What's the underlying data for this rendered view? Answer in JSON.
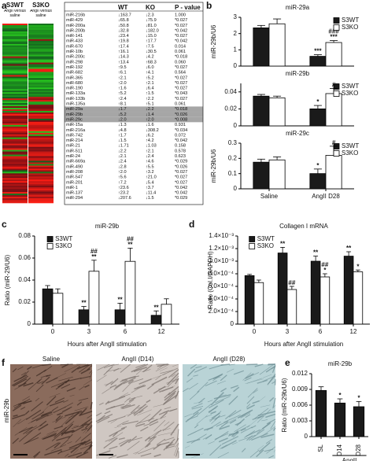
{
  "panel_labels": [
    "a",
    "b",
    "c",
    "d",
    "e",
    "f"
  ],
  "heatmap": {
    "columns": [
      "S3WT",
      "S3KO"
    ],
    "column_notes": [
      "AngII versus saline",
      "AngII versus saline"
    ]
  },
  "table": {
    "header": [
      "WT",
      "KO",
      "P - value"
    ],
    "highlighted_rows": [
      18,
      19,
      20
    ],
    "rows": [
      [
        "miR-216b",
        "↓163.7",
        "↓2.3",
        "1.000"
      ],
      [
        "miR-429",
        "↓65.8",
        "↓75.9",
        "*0.027"
      ],
      [
        "miR-200a",
        "↓50.8",
        "↓81.0",
        "*0.027"
      ],
      [
        "miR-200b",
        "↓32.8",
        "↓182.0",
        "*0.042"
      ],
      [
        "miR-141",
        "↓23.4",
        "↓15.0",
        "*0.027"
      ],
      [
        "miR-433",
        "↑19.8",
        "↑17.7",
        "*0.042"
      ],
      [
        "miR-670",
        "↑17.4",
        "↑7.5",
        "0.014"
      ],
      [
        "miR-10b",
        "↑16.1",
        "↓30.5",
        "0.061"
      ],
      [
        "miR-200c",
        "↓14.3",
        "↓4.2",
        "*0.018"
      ],
      [
        "miR-298",
        "↑13.4",
        "↑68.3",
        "0.060"
      ],
      [
        "miR-192",
        "↑9.5",
        "↓6.0",
        "*0.027"
      ],
      [
        "miR-682",
        "↑6.1",
        "↑4.1",
        "0.564"
      ],
      [
        "miR-365",
        "↑2.1",
        "↑5.2",
        "*0.027"
      ],
      [
        "miR-680",
        "↑2.0",
        "↑2.1",
        "*0.027"
      ],
      [
        "miR-190",
        "↑1.6",
        "↓6.4",
        "*0.027"
      ],
      [
        "miR-133a",
        "↑5.2",
        "↑1.5",
        "*0.043"
      ],
      [
        "miR-133b",
        "↑2.4",
        "↑2.2",
        "*0.027"
      ],
      [
        "miR-135a",
        "↑8.1",
        "↑5.1",
        "0.061"
      ],
      [
        "miR-29a",
        "↓1.7",
        "↓2.2",
        "*0.018"
      ],
      [
        "miR-29b",
        "↓5.2",
        "↓1.4",
        "*0.026"
      ],
      [
        "miR-29c",
        "↓2.0",
        "↑2.0",
        "*0.008"
      ],
      [
        "miR-15a",
        "↓1.3",
        "↓1.6",
        "0.931"
      ],
      [
        "miR-216a",
        "↓4.8",
        "↓308.2",
        "*0.034"
      ],
      [
        "miR-742",
        "↑1.7",
        "↓6.2",
        "0.072"
      ],
      [
        "miR-214",
        "↓1.5",
        "↑4.2",
        "*0.042"
      ],
      [
        "miR-21",
        "↓1.71",
        "↓1.03",
        "0.158"
      ],
      [
        "miR-511",
        "↓2.2",
        "↑2.1",
        "0.578"
      ],
      [
        "miR-24",
        "↓2.1",
        "↓2.4",
        "0.623"
      ],
      [
        "miR-669a",
        "↓2.4",
        "↑4.6",
        "*0.029"
      ],
      [
        "miR-490",
        "↓2.8",
        "↑5.5",
        "*0.026"
      ],
      [
        "miR-208",
        "↑2.0",
        "↑3.2",
        "*0.027"
      ],
      [
        "miR-547",
        "↑5.6",
        "↑21.0",
        "*0.027"
      ],
      [
        "miR-201",
        "↑7.2",
        "↓5.4",
        "*0.027"
      ],
      [
        "miR-1",
        "↑23.6",
        "↑3.7",
        "*0.042"
      ],
      [
        "miR-137",
        "↑23.2",
        "↓11.4",
        "*0.042"
      ],
      [
        "miR-294",
        "↓207.6",
        "↓1.5",
        "*0.029"
      ]
    ]
  },
  "chart_data": [
    {
      "type": "bar",
      "title": "miR-29a",
      "ylabel": "miR-29b/U6",
      "ylim": [
        0,
        3
      ],
      "yticks": [
        0,
        1,
        2,
        3
      ],
      "legend": "upper right",
      "series": [
        {
          "name": "S3WT",
          "color": "#1a1a1a",
          "values": [
            2.35,
            0.6
          ],
          "errors": [
            0.15,
            0.1
          ],
          "annotations": [
            null,
            [
              "***"
            ]
          ]
        },
        {
          "name": "S3KO",
          "color": "#ffffff",
          "values": [
            2.6,
            1.45
          ],
          "errors": [
            0.3,
            0.12
          ],
          "annotations": [
            null,
            [
              "###",
              "***"
            ]
          ]
        }
      ]
    },
    {
      "type": "bar",
      "title": "miR-29b",
      "ylim": [
        0,
        0.05
      ],
      "yticks": [
        0,
        0.02,
        0.04
      ],
      "legend": "upper right",
      "series": [
        {
          "name": "S3WT",
          "color": "#1a1a1a",
          "values": [
            0.035,
            0.02
          ],
          "errors": [
            0.002,
            0.004
          ],
          "annotations": [
            null,
            [
              "*"
            ]
          ]
        },
        {
          "name": "S3KO",
          "color": "#ffffff",
          "values": [
            0.033,
            0.038
          ],
          "errors": [
            0.002,
            0.006
          ],
          "annotations": [
            null,
            [
              "#"
            ]
          ]
        }
      ]
    },
    {
      "type": "bar",
      "title": "miR-29c",
      "ylabel": "miR-29b/U6",
      "ylim": [
        0,
        0.3
      ],
      "yticks": [
        0,
        0.1,
        0.2,
        0.3
      ],
      "legend": "upper right",
      "categories": [
        "Saline",
        "AngII D28"
      ],
      "series": [
        {
          "name": "S3WT",
          "color": "#1a1a1a",
          "values": [
            0.175,
            0.1
          ],
          "errors": [
            0.02,
            0.03
          ],
          "annotations": [
            null,
            [
              "*"
            ]
          ]
        },
        {
          "name": "S3KO",
          "color": "#ffffff",
          "values": [
            0.19,
            0.22
          ],
          "errors": [
            0.02,
            0.06
          ],
          "annotations": [
            null,
            [
              "#"
            ]
          ]
        }
      ]
    },
    {
      "type": "bar",
      "title": "miR-29b",
      "ylabel": "Ratio (miR-29/U6)",
      "xlabel": "Hours after AngII stimulation",
      "ylim": [
        0,
        0.08
      ],
      "yticks": [
        0,
        0.02,
        0.04,
        0.06,
        0.08
      ],
      "legend": "upper left",
      "categories": [
        "0",
        "3",
        "6",
        "12"
      ],
      "series": [
        {
          "name": "S3WT",
          "color": "#1a1a1a",
          "values": [
            0.032,
            0.013,
            0.013,
            0.008
          ],
          "errors": [
            0.003,
            0.003,
            0.006,
            0.004
          ],
          "annotations": [
            null,
            [
              "**"
            ],
            [
              "**"
            ],
            [
              "**"
            ]
          ]
        },
        {
          "name": "S3KO",
          "color": "#ffffff",
          "values": [
            0.028,
            0.048,
            0.057,
            0.018
          ],
          "errors": [
            0.004,
            0.01,
            0.012,
            0.005
          ],
          "annotations": [
            null,
            [
              "##",
              "**"
            ],
            [
              "##",
              "**"
            ],
            null
          ]
        }
      ]
    },
    {
      "type": "bar",
      "title": "Collagen I mRNA",
      "ylabel": "Ratio (Col.I/GAPDH)",
      "xlabel": "Hours after AngII stimulation",
      "ylim": [
        0,
        0.0014
      ],
      "legend": "upper left",
      "yticks": [
        {
          "value": 0,
          "label": "0"
        },
        {
          "value": 0.0002,
          "label": "2.0×10⁻⁴"
        },
        {
          "value": 0.0004,
          "label": "4.0×10⁻⁴"
        },
        {
          "value": 0.0006,
          "label": "6.0×10⁻⁴"
        },
        {
          "value": 0.0008,
          "label": "8.0×10⁻⁴"
        },
        {
          "value": 0.001,
          "label": "1.0×10⁻³"
        },
        {
          "value": 0.0012,
          "label": "1.2×10⁻³"
        },
        {
          "value": 0.0014,
          "label": "1.4×10⁻³"
        }
      ],
      "categories": [
        "0",
        "3",
        "6",
        "12"
      ],
      "series": [
        {
          "name": "S3WT",
          "color": "#1a1a1a",
          "values": [
            0.00077,
            0.00113,
            0.001,
            0.00108
          ],
          "errors": [
            2e-05,
            9e-05,
            8e-05,
            7e-05
          ],
          "annotations": [
            null,
            [
              "**"
            ],
            [
              "**"
            ],
            [
              "**"
            ]
          ]
        },
        {
          "name": "S3KO",
          "color": "#ffffff",
          "values": [
            0.00066,
            0.00055,
            0.00075,
            0.00083
          ],
          "errors": [
            4e-05,
            5e-05,
            5e-05,
            3e-05
          ],
          "annotations": [
            null,
            [
              "##"
            ],
            [
              "##",
              "*"
            ],
            [
              "*"
            ]
          ]
        }
      ]
    },
    {
      "type": "bar",
      "title": "miR-29b",
      "ylabel": "Ratio (miR-29b/U6)",
      "ylim": [
        0,
        0.012
      ],
      "yticks": [
        0,
        0.003,
        0.006,
        0.009,
        0.012
      ],
      "categories": [
        "SL",
        "D14",
        "D28"
      ],
      "group_label": "AngII",
      "color": "#1a1a1a",
      "values": [
        0.0088,
        0.0064,
        0.0057
      ],
      "errors": [
        0.0007,
        0.0008,
        0.001
      ],
      "annotations": [
        null,
        [
          "*"
        ],
        [
          "*"
        ]
      ]
    }
  ],
  "micrographs": {
    "row_label": "miR-29b",
    "titles": [
      "Saline",
      "AngII (D14)",
      "AngII (D28)"
    ]
  }
}
